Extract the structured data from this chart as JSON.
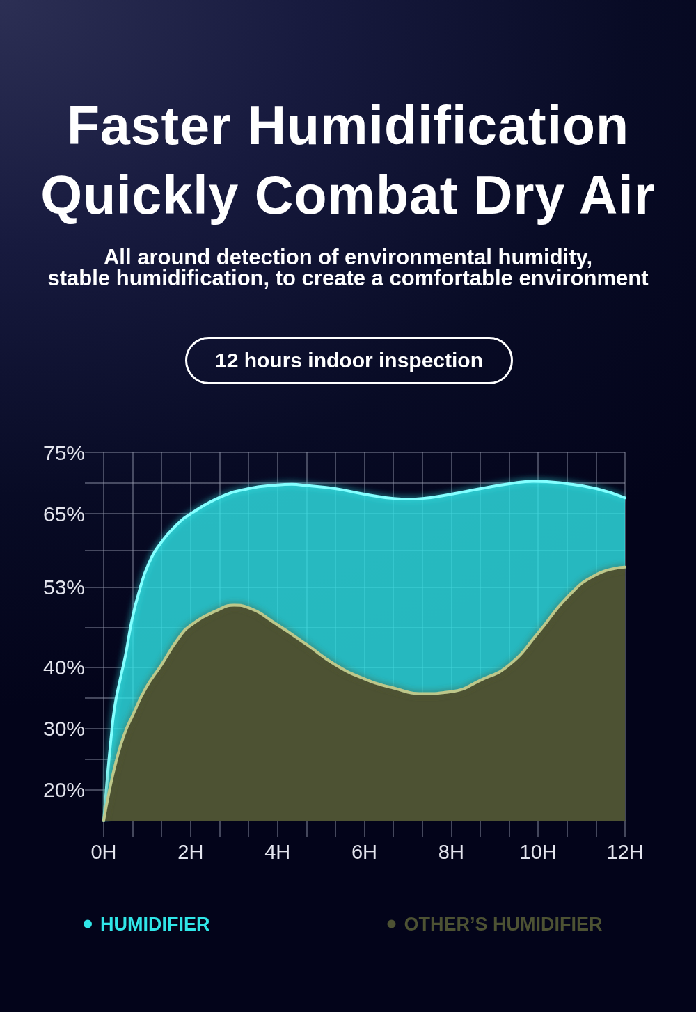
{
  "chart_data": {
    "type": "area",
    "title": "Faster Humidification\nQuickly Combat Dry Air",
    "subtitle": "All around detection of environmental humidity,\nstable humidification, to create a comfortable environment",
    "annotations": [
      "12 hours indoor inspection"
    ],
    "xlim": [
      0,
      12
    ],
    "xticks": [
      {
        "value": 0,
        "label": "0H"
      },
      {
        "value": 0.667,
        "label": null
      },
      {
        "value": 1.333,
        "label": null
      },
      {
        "value": 2,
        "label": "2H"
      },
      {
        "value": 2.667,
        "label": null
      },
      {
        "value": 3.333,
        "label": null
      },
      {
        "value": 4,
        "label": "4H"
      },
      {
        "value": 4.667,
        "label": null
      },
      {
        "value": 5.333,
        "label": null
      },
      {
        "value": 6,
        "label": "6H"
      },
      {
        "value": 6.667,
        "label": null
      },
      {
        "value": 7.333,
        "label": null
      },
      {
        "value": 8,
        "label": "8H"
      },
      {
        "value": 8.667,
        "label": null
      },
      {
        "value": 9.333,
        "label": null
      },
      {
        "value": 10,
        "label": "10H"
      },
      {
        "value": 10.667,
        "label": null
      },
      {
        "value": 11.333,
        "label": null
      },
      {
        "value": 12,
        "label": "12H"
      }
    ],
    "ylim": [
      15,
      75
    ],
    "yticks": [
      {
        "value": 20,
        "label": "20%"
      },
      {
        "value": 25,
        "label": null
      },
      {
        "value": 30,
        "label": "30%"
      },
      {
        "value": 35,
        "label": null
      },
      {
        "value": 40,
        "label": "40%"
      },
      {
        "value": 46.5,
        "label": null
      },
      {
        "value": 53,
        "label": "53%"
      },
      {
        "value": 59,
        "label": null
      },
      {
        "value": 65,
        "label": "65%"
      },
      {
        "value": 70,
        "label": null
      },
      {
        "value": 75,
        "label": "75%"
      }
    ],
    "grid": true,
    "legend": "bottom",
    "marker": "none",
    "series": [
      {
        "name": "HUMIDIFIER",
        "color": "#30e6e8",
        "x": [
          0,
          0.08,
          0.16,
          0.25,
          0.375,
          0.5,
          0.65,
          0.81,
          1.03,
          1.34,
          1.71,
          2,
          2.68,
          3.33,
          4,
          4.33,
          4.67,
          5.33,
          6,
          6.67,
          7.03,
          7.34,
          8,
          8.68,
          9.34,
          9.9,
          10.67,
          11.34,
          12
        ],
        "values": [
          15,
          21.7,
          27.8,
          33.4,
          37.9,
          41.9,
          47.7,
          52.2,
          56.8,
          60.5,
          63.4,
          65,
          67.7,
          69.1,
          69.7,
          69.8,
          69.6,
          69.1,
          68.2,
          67.5,
          67.4,
          67.5,
          68.2,
          69.1,
          69.9,
          70.3,
          69.9,
          69.1,
          67.6
        ]
      },
      {
        "name": "OTHER’S HUMIDIFIER",
        "color": "#4d5233",
        "x": [
          0,
          0.125,
          0.28,
          0.47,
          0.67,
          0.97,
          1.33,
          1.71,
          2,
          2.68,
          3,
          3.33,
          4,
          4.67,
          5.33,
          6,
          6.67,
          7.34,
          8,
          8.68,
          9.34,
          10,
          10.67,
          11.34,
          12
        ],
        "values": [
          15,
          19.7,
          24.5,
          29,
          32.2,
          36.6,
          40.4,
          44.6,
          46.8,
          49.5,
          50.1,
          49.7,
          46.9,
          43.7,
          40.4,
          38.1,
          36.6,
          35.7,
          36,
          37.9,
          40.4,
          45.6,
          51.4,
          55.1,
          56.3
        ]
      }
    ]
  }
}
